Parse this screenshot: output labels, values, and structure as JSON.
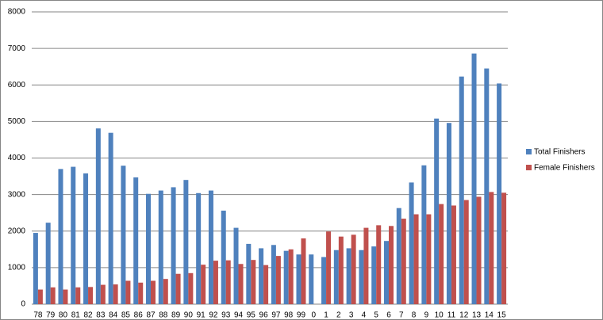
{
  "chart_data": {
    "type": "bar",
    "categories": [
      "78",
      "79",
      "80",
      "81",
      "82",
      "83",
      "84",
      "85",
      "86",
      "87",
      "88",
      "89",
      "90",
      "91",
      "92",
      "93",
      "94",
      "95",
      "96",
      "97",
      "98",
      "99",
      "0",
      "1",
      "2",
      "3",
      "4",
      "5",
      "6",
      "7",
      "8",
      "9",
      "10",
      "11",
      "12",
      "13",
      "14",
      "15"
    ],
    "series": [
      {
        "name": "Total Finishers",
        "color": "#4f81bd",
        "values": [
          1950,
          2230,
          3700,
          3760,
          3580,
          4810,
          4690,
          3790,
          3470,
          3020,
          3110,
          3200,
          3400,
          3040,
          3110,
          2560,
          2090,
          1650,
          1530,
          1620,
          1460,
          1360,
          1360,
          1290,
          1480,
          1530,
          1480,
          1580,
          1730,
          2630,
          3330,
          3800,
          5080,
          4960,
          6230,
          6860,
          6450,
          6040
        ]
      },
      {
        "name": "Female Finishers",
        "color": "#c0504d",
        "values": [
          400,
          460,
          400,
          460,
          470,
          530,
          540,
          640,
          590,
          640,
          690,
          830,
          850,
          1080,
          1190,
          1200,
          1100,
          1210,
          1070,
          1320,
          1500,
          1800,
          null,
          1990,
          1850,
          1900,
          2090,
          2160,
          2140,
          2340,
          2460,
          2460,
          2740,
          2700,
          2850,
          2940,
          3070,
          3050
        ]
      }
    ],
    "ylim": [
      0,
      8000
    ],
    "yticks": [
      0,
      1000,
      2000,
      3000,
      4000,
      5000,
      6000,
      7000,
      8000
    ],
    "grid": true,
    "legend": "right"
  }
}
